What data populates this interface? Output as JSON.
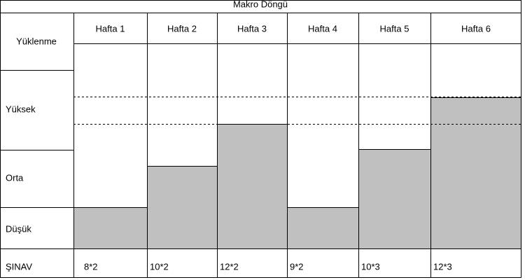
{
  "header": {
    "title": "Makro Döngü"
  },
  "table": {
    "corner": "Yüklenme",
    "weeks": [
      "Hafta 1",
      "Hafta 2",
      "Hafta 3",
      "Hafta 4",
      "Hafta 5",
      "Hafta 6"
    ],
    "levels": [
      "Yüksek",
      "Orta",
      "Düşük"
    ],
    "exam_label": "ŞINAV",
    "exam": [
      "8*2",
      "10*2",
      "12*2",
      "9*2",
      "10*3",
      "12*3"
    ]
  }
}
